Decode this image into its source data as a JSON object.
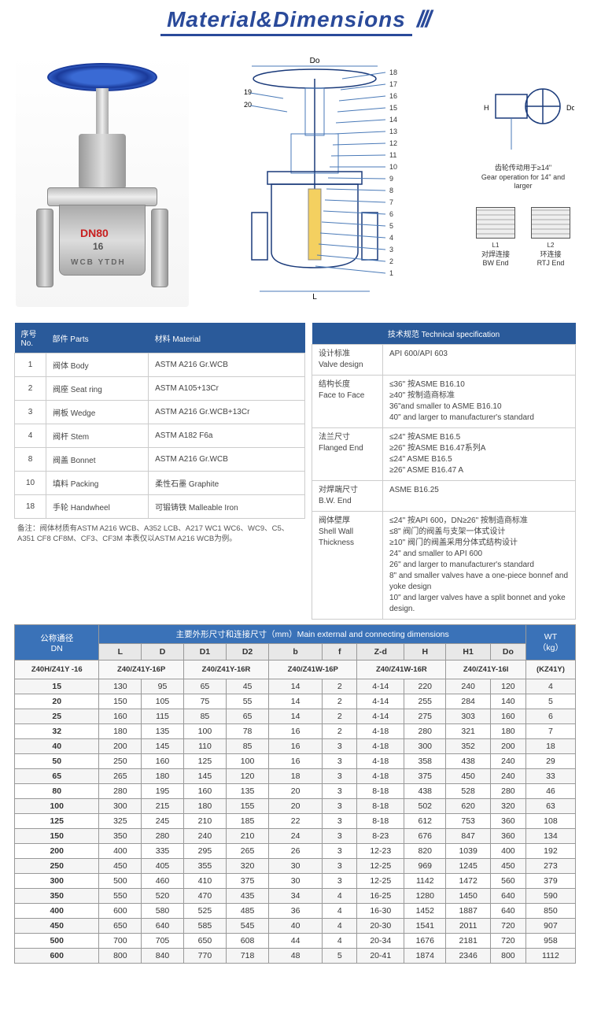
{
  "title": "Material&Dimensions",
  "valve_marking": {
    "dn": "DN80",
    "pn": "16",
    "body": "WCB   YTDH"
  },
  "drawing": {
    "do_label": "Do",
    "gear_note_cn": "齿轮传动用于≥14\"",
    "gear_note_en": "Gear operation for 14\" and larger",
    "bw_cn": "对焊连接",
    "bw_en": "BW End",
    "rtj_cn": "环连接",
    "rtj_en": "RTJ End",
    "dim_L": "L",
    "dim_L1": "L1",
    "dim_L2": "L2",
    "dim_H": "H",
    "dim_Do2": "Do",
    "callouts": [
      "18",
      "17",
      "16",
      "15",
      "14",
      "13",
      "12",
      "11",
      "10",
      "9",
      "8",
      "7",
      "6",
      "5",
      "4",
      "3",
      "2",
      "1"
    ],
    "leader_left": [
      "19",
      "20"
    ]
  },
  "parts_table": {
    "headers": [
      "序号 No.",
      "部件 Parts",
      "材料 Material"
    ],
    "rows": [
      [
        "1",
        "阀体 Body",
        "ASTM A216 Gr.WCB"
      ],
      [
        "2",
        "阀座 Seat ring",
        "ASTM A105+13Cr"
      ],
      [
        "3",
        "闸板 Wedge",
        "ASTM A216 Gr.WCB+13Cr"
      ],
      [
        "4",
        "阀杆 Stem",
        "ASTM A182 F6a"
      ],
      [
        "8",
        "阀盖 Bonnet",
        "ASTM A216 Gr.WCB"
      ],
      [
        "10",
        "填料 Packing",
        "柔性石墨 Graphite"
      ],
      [
        "18",
        "手轮 Handwheel",
        "可锻铸铁 Malleable Iron"
      ]
    ],
    "note": "备注：阀体材质有ASTM A216 WCB、A352 LCB、A217 WC1 WC6、WC9、C5、A351 CF8 CF8M、CF3、CF3M  本表仅以ASTM A216 WCB为例。"
  },
  "spec_table": {
    "title": "技术规范 Technical specification",
    "rows": [
      {
        "k": "设计标准\nValve design",
        "v": "API 600/API 603"
      },
      {
        "k": "结构长度\nFace to Face",
        "v": "≤36\" 按ASME B16.10\n≥40\" 按制造商标准\n36\"and smaller to ASME B16.10\n40\" and larger to manufacturer's standard"
      },
      {
        "k": "法兰尺寸\nFlanged End",
        "v": "≤24\" 按ASME B16.5\n≥26\" 按ASME B16.47系列A\n≤24\" ASME B16.5\n≥26\" ASME B16.47 A"
      },
      {
        "k": "对焊端尺寸\nB.W. End",
        "v": "ASME B16.25"
      },
      {
        "k": "阀体壁厚\nShell Wall Thickness",
        "v": "≤24\" 按API 600，DN≥26\" 按制造商标准\n≤8\" 阀门的阀盖与支架一体式设计\n≥10\" 阀门的阀盖采用分体式结构设计\n24\" and smaller to API 600\n26\" and larger to manufacturer's standard\n8\" and smaller valves have a one-piece bonnef and yoke design\n10\" and larger valves have a split bonnet and yoke design."
      }
    ]
  },
  "dim_table": {
    "corner": "公称通径\nDN",
    "main_header": "主要外形尺寸和连接尺寸（mm）Main external and connecting dimensions",
    "wt_header": "WT\n（kg）",
    "cols": [
      "L",
      "D",
      "D1",
      "D2",
      "b",
      "f",
      "Z-d",
      "H",
      "H1",
      "Do"
    ],
    "model_row": {
      "left": "Z40H/Z41Y -16",
      "cells": [
        "Z40/Z41Y-16P",
        "Z40/Z41Y-16R",
        "Z40/Z41W-16P",
        "Z40/Z41W-16R",
        "Z40/Z41Y-16I",
        "(KZ41Y)"
      ]
    },
    "rows": [
      [
        "15",
        "130",
        "95",
        "65",
        "45",
        "14",
        "2",
        "4-14",
        "220",
        "240",
        "120",
        "4"
      ],
      [
        "20",
        "150",
        "105",
        "75",
        "55",
        "14",
        "2",
        "4-14",
        "255",
        "284",
        "140",
        "5"
      ],
      [
        "25",
        "160",
        "115",
        "85",
        "65",
        "14",
        "2",
        "4-14",
        "275",
        "303",
        "160",
        "6"
      ],
      [
        "32",
        "180",
        "135",
        "100",
        "78",
        "16",
        "2",
        "4-18",
        "280",
        "321",
        "180",
        "7"
      ],
      [
        "40",
        "200",
        "145",
        "110",
        "85",
        "16",
        "3",
        "4-18",
        "300",
        "352",
        "200",
        "18"
      ],
      [
        "50",
        "250",
        "160",
        "125",
        "100",
        "16",
        "3",
        "4-18",
        "358",
        "438",
        "240",
        "29"
      ],
      [
        "65",
        "265",
        "180",
        "145",
        "120",
        "18",
        "3",
        "4-18",
        "375",
        "450",
        "240",
        "33"
      ],
      [
        "80",
        "280",
        "195",
        "160",
        "135",
        "20",
        "3",
        "8-18",
        "438",
        "528",
        "280",
        "46"
      ],
      [
        "100",
        "300",
        "215",
        "180",
        "155",
        "20",
        "3",
        "8-18",
        "502",
        "620",
        "320",
        "63"
      ],
      [
        "125",
        "325",
        "245",
        "210",
        "185",
        "22",
        "3",
        "8-18",
        "612",
        "753",
        "360",
        "108"
      ],
      [
        "150",
        "350",
        "280",
        "240",
        "210",
        "24",
        "3",
        "8-23",
        "676",
        "847",
        "360",
        "134"
      ],
      [
        "200",
        "400",
        "335",
        "295",
        "265",
        "26",
        "3",
        "12-23",
        "820",
        "1039",
        "400",
        "192"
      ],
      [
        "250",
        "450",
        "405",
        "355",
        "320",
        "30",
        "3",
        "12-25",
        "969",
        "1245",
        "450",
        "273"
      ],
      [
        "300",
        "500",
        "460",
        "410",
        "375",
        "30",
        "3",
        "12-25",
        "1142",
        "1472",
        "560",
        "379"
      ],
      [
        "350",
        "550",
        "520",
        "470",
        "435",
        "34",
        "4",
        "16-25",
        "1280",
        "1450",
        "640",
        "590"
      ],
      [
        "400",
        "600",
        "580",
        "525",
        "485",
        "36",
        "4",
        "16-30",
        "1452",
        "1887",
        "640",
        "850"
      ],
      [
        "450",
        "650",
        "640",
        "585",
        "545",
        "40",
        "4",
        "20-30",
        "1541",
        "2011",
        "720",
        "907"
      ],
      [
        "500",
        "700",
        "705",
        "650",
        "608",
        "44",
        "4",
        "20-34",
        "1676",
        "2181",
        "720",
        "958"
      ],
      [
        "600",
        "800",
        "840",
        "770",
        "718",
        "48",
        "5",
        "20-41",
        "1874",
        "2346",
        "800",
        "1112"
      ]
    ]
  }
}
